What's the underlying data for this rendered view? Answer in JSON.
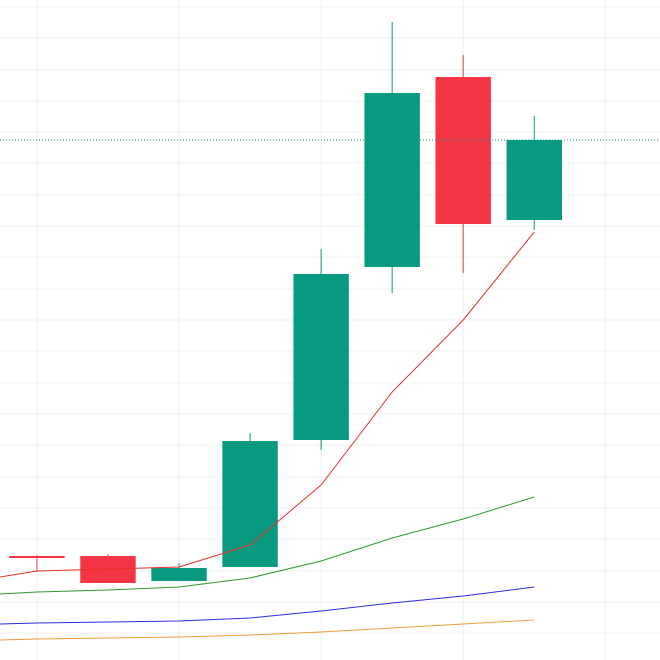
{
  "chart_data": {
    "type": "candlestick",
    "x": [
      0,
      1,
      2,
      3,
      4,
      5,
      6,
      7
    ],
    "open": [
      104,
      104,
      79,
      93,
      220,
      393,
      583,
      440
    ],
    "high": [
      105,
      106,
      97,
      227,
      411,
      638,
      605,
      544
    ],
    "low": [
      88,
      77,
      79,
      93,
      210,
      367,
      387,
      430
    ],
    "close": [
      102,
      77,
      92,
      219,
      386,
      567,
      436,
      520
    ],
    "up_color": "#089981",
    "down_color": "#f23645",
    "lines": [
      {
        "color": "#e8312a",
        "x": [
          -0.52,
          0,
          1,
          2,
          3,
          4,
          5,
          6,
          7
        ],
        "values": [
          83,
          89,
          91,
          93,
          115,
          175,
          268,
          340,
          428
        ]
      },
      {
        "color": "#2e9a2e",
        "x": [
          -0.52,
          0,
          1,
          2,
          3,
          4,
          5,
          6,
          7
        ],
        "values": [
          66,
          68,
          70,
          73,
          82,
          99,
          122,
          141,
          163
        ]
      },
      {
        "color": "#2c2ce0",
        "x": [
          -0.52,
          0,
          1,
          2,
          3,
          4,
          5,
          6,
          7
        ],
        "values": [
          36,
          37,
          38,
          39,
          42,
          49,
          57,
          64,
          73
        ]
      },
      {
        "color": "#f39a3a",
        "x": [
          -0.52,
          0,
          1,
          2,
          3,
          4,
          5,
          6,
          7
        ],
        "values": [
          20,
          21,
          22,
          23,
          25,
          28,
          32,
          36,
          40
        ]
      }
    ],
    "xlim": [
      -0.52,
      8.77
    ],
    "xticks": [
      0,
      2,
      4,
      6,
      8
    ],
    "ylim": [
      0,
      660
    ],
    "yticks": [
      27,
      58,
      89,
      121,
      152,
      183,
      215,
      246,
      277,
      309,
      340,
      371,
      403,
      434,
      465,
      497,
      528,
      559,
      590,
      622,
      653
    ],
    "grid": true,
    "last_price_line": true
  }
}
